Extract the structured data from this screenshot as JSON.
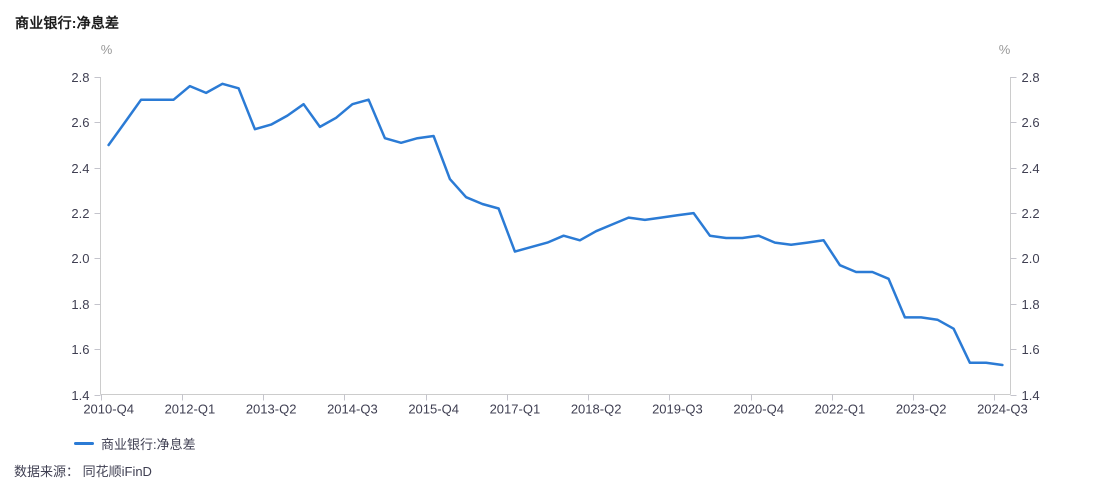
{
  "header": {
    "title": "商业银行:净息差"
  },
  "legend": {
    "items": [
      {
        "label": "商业银行:净息差",
        "color": "#2b7bd5"
      }
    ]
  },
  "footer": {
    "source": "数据来源： 同花顺iFinD"
  },
  "chart_data": {
    "type": "line",
    "title": "商业银行:净息差",
    "unit_left": "%",
    "unit_right": "%",
    "x": [
      "2010-Q4",
      "2011-Q1",
      "2011-Q2",
      "2011-Q3",
      "2011-Q4",
      "2012-Q1",
      "2012-Q2",
      "2012-Q3",
      "2012-Q4",
      "2013-Q1",
      "2013-Q2",
      "2013-Q3",
      "2013-Q4",
      "2014-Q1",
      "2014-Q2",
      "2014-Q3",
      "2014-Q4",
      "2015-Q1",
      "2015-Q2",
      "2015-Q3",
      "2015-Q4",
      "2016-Q1",
      "2016-Q2",
      "2016-Q3",
      "2016-Q4",
      "2017-Q1",
      "2017-Q2",
      "2017-Q3",
      "2017-Q4",
      "2018-Q1",
      "2018-Q2",
      "2018-Q3",
      "2018-Q4",
      "2019-Q1",
      "2019-Q2",
      "2019-Q3",
      "2019-Q4",
      "2020-Q1",
      "2020-Q2",
      "2020-Q3",
      "2020-Q4",
      "2021-Q1",
      "2021-Q2",
      "2021-Q3",
      "2021-Q4",
      "2022-Q1",
      "2022-Q2",
      "2022-Q3",
      "2022-Q4",
      "2023-Q1",
      "2023-Q2",
      "2023-Q3",
      "2023-Q4",
      "2024-Q1",
      "2024-Q2",
      "2024-Q3"
    ],
    "series": [
      {
        "name": "商业银行:净息差",
        "values": [
          2.5,
          2.6,
          2.7,
          2.7,
          2.7,
          2.76,
          2.73,
          2.77,
          2.75,
          2.57,
          2.59,
          2.63,
          2.68,
          2.58,
          2.62,
          2.68,
          2.7,
          2.53,
          2.51,
          2.53,
          2.54,
          2.35,
          2.27,
          2.24,
          2.22,
          2.03,
          2.05,
          2.07,
          2.1,
          2.08,
          2.12,
          2.15,
          2.18,
          2.17,
          2.18,
          2.19,
          2.2,
          2.1,
          2.09,
          2.09,
          2.1,
          2.07,
          2.06,
          2.07,
          2.08,
          1.97,
          1.94,
          1.94,
          1.91,
          1.74,
          1.74,
          1.73,
          1.69,
          1.54,
          1.54,
          1.53
        ]
      }
    ],
    "ylim": [
      1.4,
      2.8
    ],
    "y_ticks": [
      "2.8",
      "2.6",
      "2.4",
      "2.2",
      "2.0",
      "1.8",
      "1.6",
      "1.4"
    ],
    "x_tick_labels": [
      "2010-Q4",
      "2012-Q1",
      "2013-Q2",
      "2014-Q3",
      "2015-Q4",
      "2017-Q1",
      "2018-Q2",
      "2019-Q3",
      "2020-Q4",
      "2022-Q1",
      "2023-Q2",
      "2024-Q3"
    ],
    "x_label_step": 5,
    "grid": false,
    "legend_position": "bottom-left",
    "colors": {
      "line": "#2b7bd5",
      "axis_line": "#cccccc",
      "tick_mark": "#c4c4cc",
      "tick_text": "#3f3f52",
      "unit_text": "#999999",
      "title_text": "#1a1a1a"
    }
  }
}
